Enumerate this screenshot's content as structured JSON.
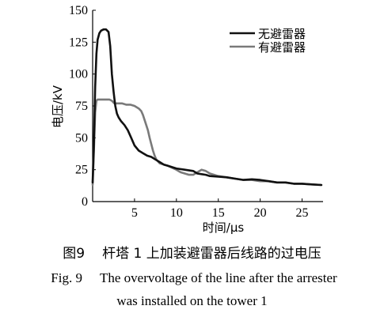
{
  "chart_data": {
    "type": "line",
    "xlabel": "时间/μs",
    "ylabel": "电压/kV",
    "xlim": [
      0,
      27.5
    ],
    "ylim": [
      0,
      150
    ],
    "x_ticks": [
      "5",
      "10",
      "15",
      "20",
      "25"
    ],
    "y_ticks": [
      "0",
      "25",
      "50",
      "75",
      "100",
      "125",
      "150"
    ],
    "legend_position": "top-right",
    "series": [
      {
        "name": "无避雷器",
        "color": "#111111",
        "points": [
          [
            0,
            15
          ],
          [
            0.15,
            45
          ],
          [
            0.3,
            90
          ],
          [
            0.45,
            116
          ],
          [
            0.6,
            127
          ],
          [
            0.8,
            132
          ],
          [
            1,
            134
          ],
          [
            1.3,
            135
          ],
          [
            1.6,
            135
          ],
          [
            1.9,
            133
          ],
          [
            2.1,
            122
          ],
          [
            2.3,
            100
          ],
          [
            2.5,
            86
          ],
          [
            2.7,
            75
          ],
          [
            2.9,
            69
          ],
          [
            3.1,
            66
          ],
          [
            3.4,
            63
          ],
          [
            3.8,
            60
          ],
          [
            4.2,
            56
          ],
          [
            4.6,
            50
          ],
          [
            5,
            44
          ],
          [
            5.5,
            40
          ],
          [
            6,
            38
          ],
          [
            6.5,
            36
          ],
          [
            7,
            35
          ],
          [
            7.5,
            33
          ],
          [
            8,
            31
          ],
          [
            8.5,
            29
          ],
          [
            9,
            28
          ],
          [
            10,
            26
          ],
          [
            11,
            25
          ],
          [
            12,
            24
          ],
          [
            12.5,
            22
          ],
          [
            13,
            21.5
          ],
          [
            13.5,
            21
          ],
          [
            14,
            20
          ],
          [
            15,
            19.5
          ],
          [
            16,
            19
          ],
          [
            17,
            18
          ],
          [
            18,
            17
          ],
          [
            19,
            17.5
          ],
          [
            20,
            17
          ],
          [
            21,
            16
          ],
          [
            22,
            15
          ],
          [
            23,
            15
          ],
          [
            24,
            14
          ],
          [
            25,
            14
          ],
          [
            26,
            13.5
          ],
          [
            27.3,
            13
          ]
        ]
      },
      {
        "name": "有避雷器",
        "color": "#7a7a7a",
        "points": [
          [
            0,
            13
          ],
          [
            0.15,
            40
          ],
          [
            0.3,
            70
          ],
          [
            0.45,
            79
          ],
          [
            0.6,
            80
          ],
          [
            1,
            80
          ],
          [
            1.5,
            80
          ],
          [
            2,
            80
          ],
          [
            2.3,
            79
          ],
          [
            2.6,
            77
          ],
          [
            3,
            77
          ],
          [
            3.5,
            77
          ],
          [
            4,
            76
          ],
          [
            4.5,
            76
          ],
          [
            5,
            75
          ],
          [
            5.5,
            73
          ],
          [
            5.8,
            71
          ],
          [
            6,
            68
          ],
          [
            6.2,
            64
          ],
          [
            6.4,
            60
          ],
          [
            6.6,
            56
          ],
          [
            6.8,
            50
          ],
          [
            7,
            45
          ],
          [
            7.2,
            40
          ],
          [
            7.4,
            36
          ],
          [
            7.6,
            33
          ],
          [
            8,
            30
          ],
          [
            9,
            28
          ],
          [
            10,
            25
          ],
          [
            10.5,
            23
          ],
          [
            11,
            22
          ],
          [
            11.5,
            21
          ],
          [
            12,
            21
          ],
          [
            12.5,
            23
          ],
          [
            13,
            25
          ],
          [
            13.5,
            24
          ],
          [
            14,
            22
          ],
          [
            15,
            20
          ],
          [
            16,
            19
          ],
          [
            17,
            18
          ],
          [
            18,
            17
          ],
          [
            19,
            17
          ],
          [
            20,
            16
          ],
          [
            21,
            16
          ],
          [
            22,
            15
          ],
          [
            23,
            15
          ],
          [
            24,
            14
          ],
          [
            25,
            14
          ],
          [
            26,
            13.5
          ],
          [
            27.3,
            13
          ]
        ]
      }
    ]
  },
  "caption": {
    "cn_label": "图9",
    "cn_text": "杆塔 1 上加装避雷器后线路的过电压",
    "en_label": "Fig. 9",
    "en_line1": "The overvoltage of the line after the arrester",
    "en_line2": "was installed on the tower 1"
  }
}
